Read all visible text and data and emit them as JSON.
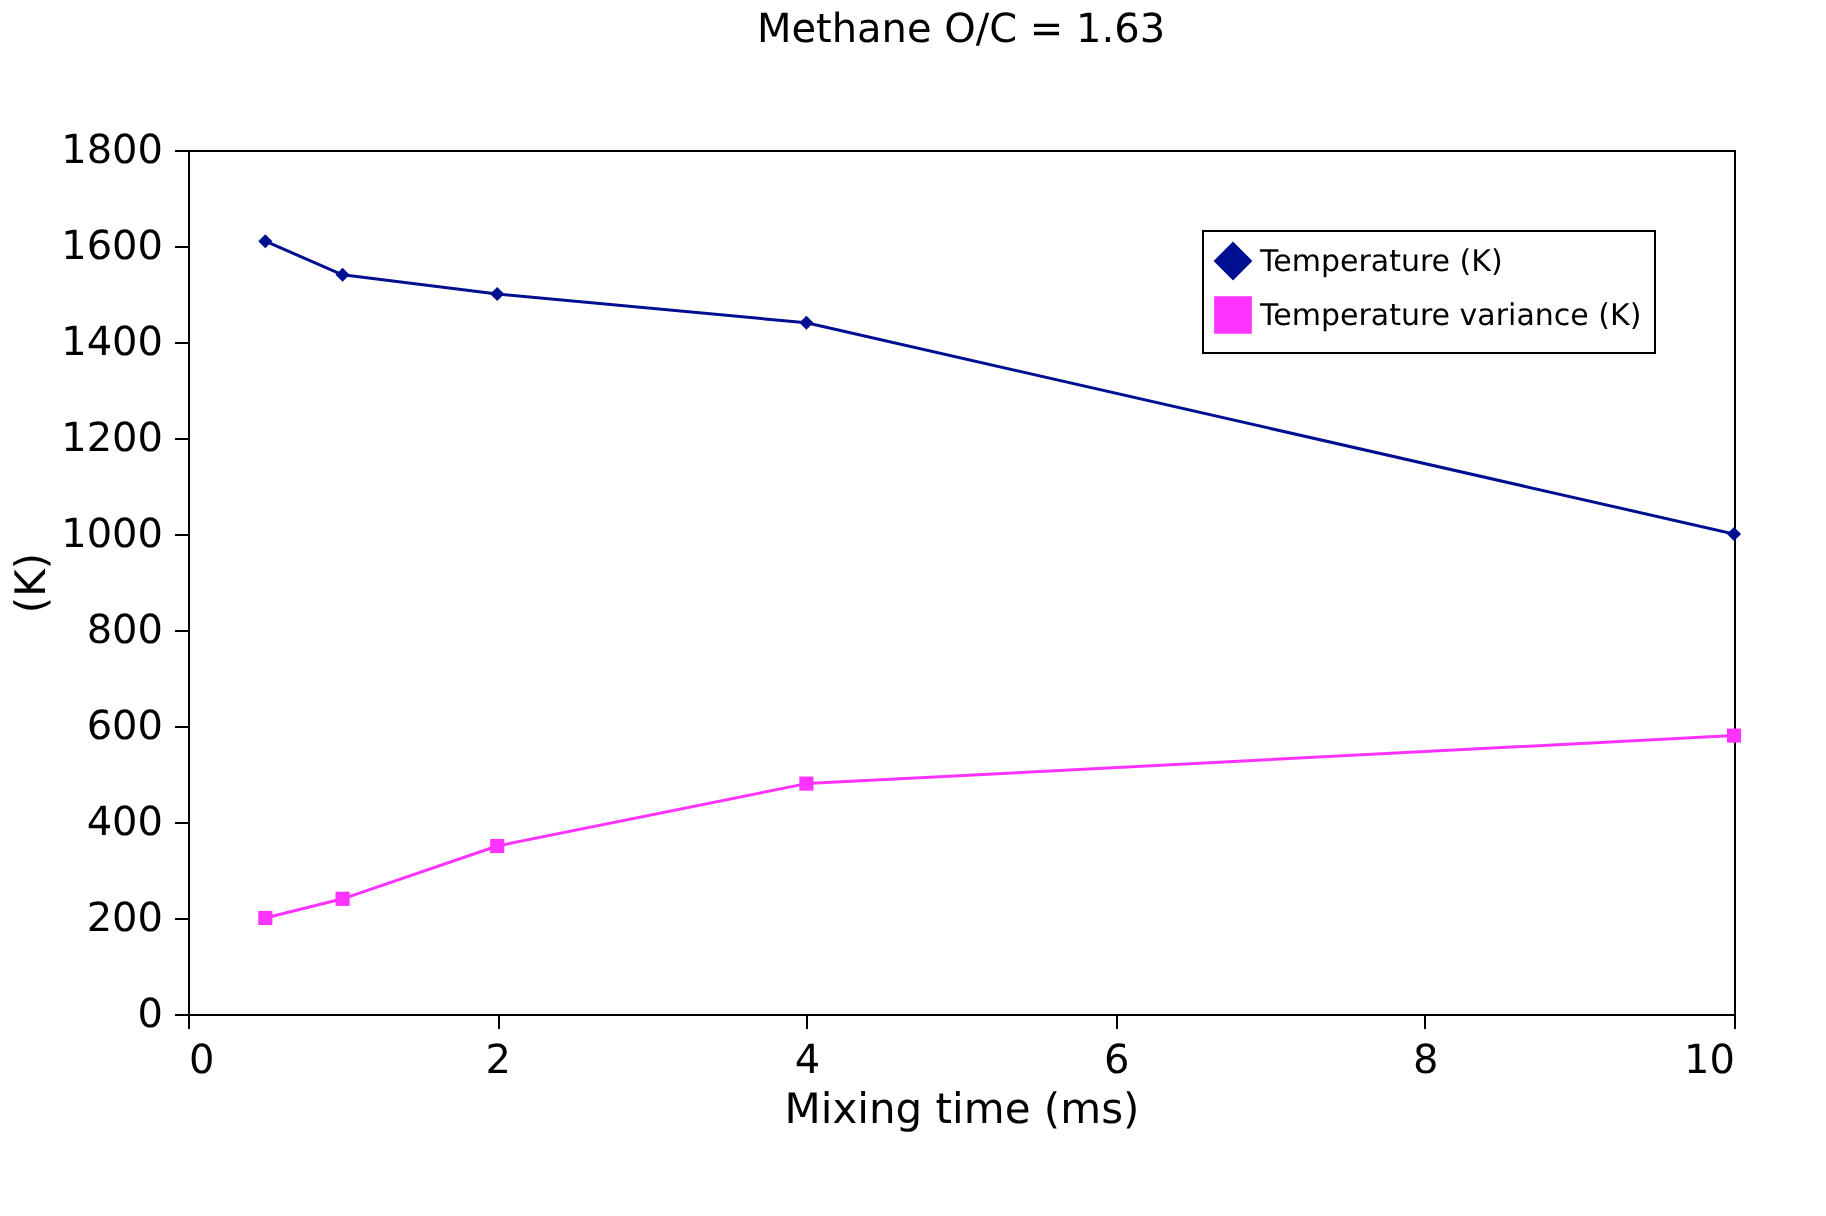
{
  "chart_data": {
    "type": "line",
    "title": "Methane O/C = 1.63",
    "xlabel": "Mixing time (ms)",
    "ylabel": "(K)",
    "xlim": [
      0,
      10
    ],
    "xticks": [
      0,
      2,
      4,
      6,
      8,
      10
    ],
    "ylim": [
      0,
      1800
    ],
    "yticks": [
      0,
      200,
      400,
      600,
      800,
      1000,
      1200,
      1400,
      1600,
      1800
    ],
    "grid": false,
    "legend": "top right",
    "line_style": "solid",
    "series": [
      {
        "name": "Temperature (K)",
        "color": "#000f8f",
        "marker": "diamond",
        "x": [
          0.5,
          1,
          2,
          4,
          10
        ],
        "values": [
          1610,
          1540,
          1500,
          1440,
          1000
        ]
      },
      {
        "name": "Temperature variance (K)",
        "color": "#ff33ff",
        "marker": "square",
        "x": [
          0.5,
          1,
          2,
          4,
          10
        ],
        "values": [
          200,
          240,
          350,
          480,
          580
        ]
      }
    ]
  }
}
